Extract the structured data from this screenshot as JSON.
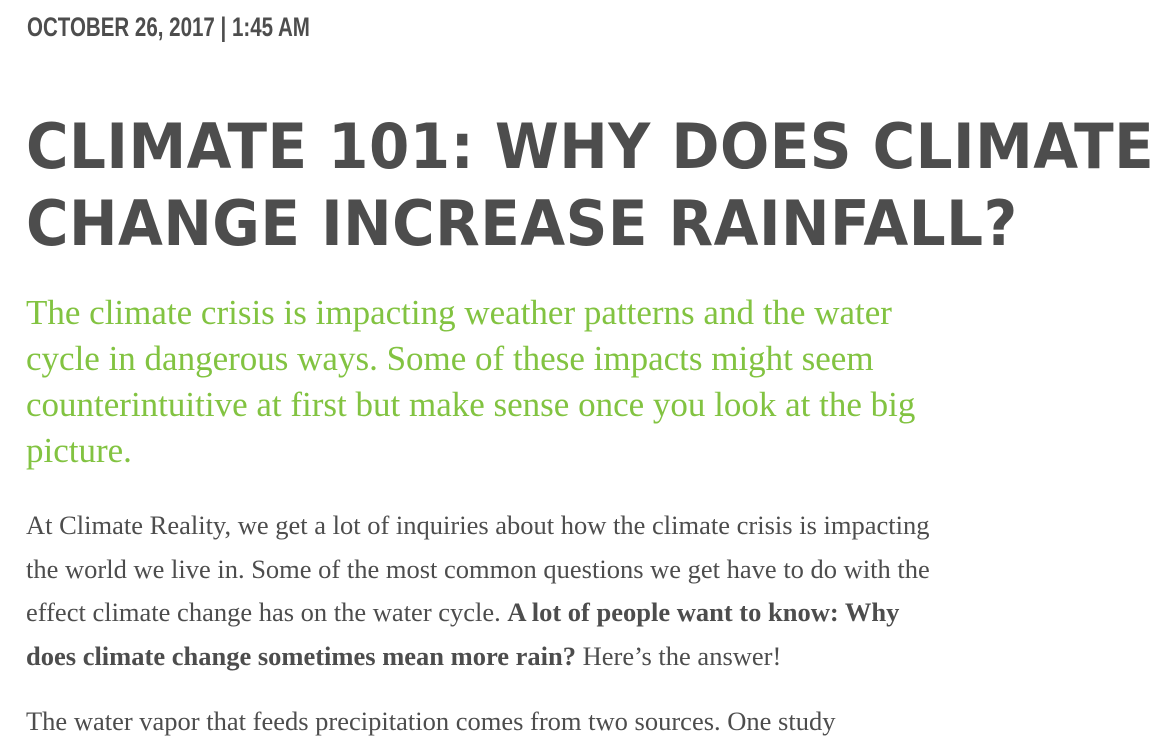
{
  "article": {
    "dateline": "OCTOBER 26, 2017 | 1:45 AM",
    "title_lines": [
      "CLIMATE 101: WHY DOES CLIMATE",
      "CHANGE INCREASE RAINFALL?"
    ],
    "lede_lines": [
      "The climate crisis is impacting weather patterns and the water",
      "cycle in dangerous ways. Some of these impacts might seem",
      "counterintuitive at first but make sense once you look at the big",
      "picture."
    ],
    "paragraph1": {
      "line1": "At Climate Reality, we get a lot of inquiries about how the climate crisis is impacting",
      "line2": "the world we live in. Some of the most common questions we get have to do with the",
      "line3_text": "effect climate change has on the water cycle. ",
      "line3_bold": "A lot of people want to know: Why",
      "line4_bold": "does climate change sometimes mean more rain?",
      "line4_text": " Here’s the answer!"
    },
    "paragraph2": {
      "line1": "The water vapor that feeds precipitation comes from two sources. One study"
    }
  }
}
